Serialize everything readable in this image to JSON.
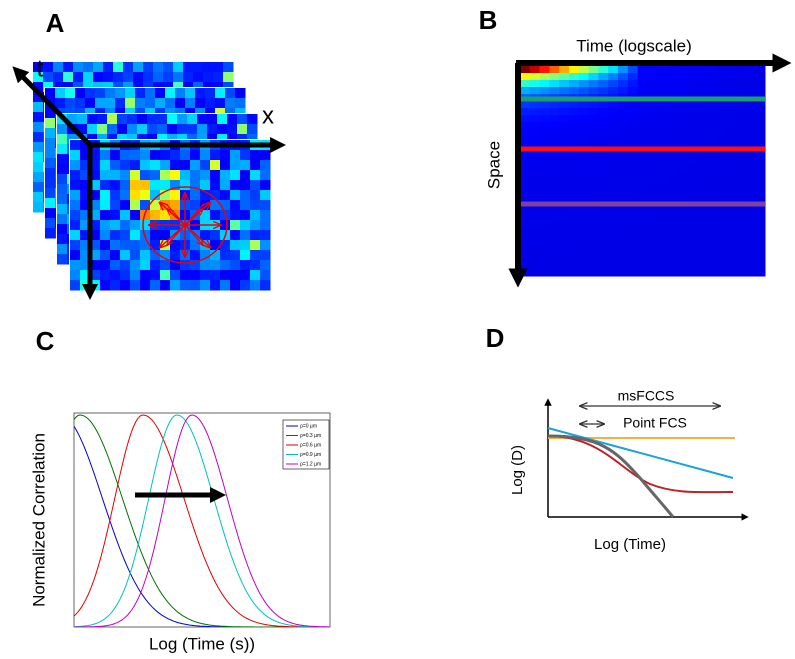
{
  "panel_a": {
    "label": "A",
    "t_axis": "t",
    "x_axis": "x"
  },
  "panel_b": {
    "label": "B",
    "x_axis": "Time (logscale)",
    "y_axis": "Space"
  },
  "panel_c": {
    "label": "C",
    "y_axis": "Normalized Correlation",
    "x_axis": "Log (Time (s))",
    "legend": [
      {
        "name": "ρ=0 µm",
        "color": "#0000cc"
      },
      {
        "name": "ρ=0.3 µm",
        "color": "#007000"
      },
      {
        "name": "ρ=0.6 µm",
        "color": "#e00000"
      },
      {
        "name": "ρ=0.9 µm",
        "color": "#00c0c0"
      },
      {
        "name": "ρ=1.2 µm",
        "color": "#c000c0"
      }
    ]
  },
  "panel_d": {
    "label": "D",
    "y_axis": "Log (D)",
    "x_axis": "Log (Time)",
    "span_long": "msFCCS",
    "span_short": "Point FCS"
  }
}
